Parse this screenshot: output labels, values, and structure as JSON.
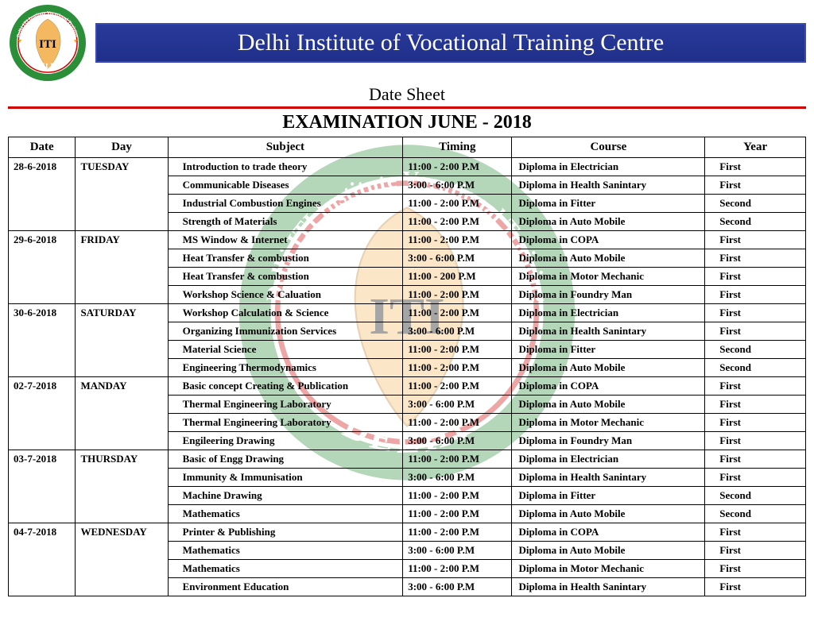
{
  "header": {
    "institute": "Delhi Institute of Vocational Training Centre",
    "subtitle": "Date Sheet",
    "exam_title": "EXAMINATION JUNE - 2018"
  },
  "logo": {
    "ring_outer": "#2b8f3a",
    "ring_text_bg": "#1f6f2a",
    "center_bg": "#ffffff",
    "text": "ITI",
    "city": "DELHI",
    "arc_top": "Delhi ITI Institute Vocational Training",
    "arc_bottom": "Centre",
    "star": "#f5a623",
    "map_fill": "#f4b860"
  },
  "colors": {
    "title_bg": "#24369a",
    "title_text": "#ffffff",
    "red_rule": "#d00000",
    "border": "#000000",
    "text": "#000000"
  },
  "columns": [
    "Date",
    "Day",
    "Subject",
    "Timing",
    "Course",
    "Year"
  ],
  "groups": [
    {
      "date": "28-6-2018",
      "day": "TUESDAY",
      "rows": [
        {
          "subject": "Introduction to trade theory",
          "timing": "11:00 - 2:00 P.M",
          "course": "Diploma in Electrician",
          "year": "First"
        },
        {
          "subject": "Communicable Diseases",
          "timing": "3:00 - 6:00 P.M",
          "course": "Diploma in Health Sanintary",
          "year": "First"
        },
        {
          "subject": "Industrial Combustion Engines",
          "timing": "11:00 - 2:00 P.M",
          "course": "Diploma in Fitter",
          "year": "Second"
        },
        {
          "subject": "Strength of Materials",
          "timing": "11:00 - 2:00 P.M",
          "course": "Diploma in Auto Mobile",
          "year": "Second"
        }
      ]
    },
    {
      "date": "29-6-2018",
      "day": "FRIDAY",
      "rows": [
        {
          "subject": "MS Window & Internet",
          "timing": "11:00 - 2:00 P.M",
          "course": "Diploma in COPA",
          "year": "First"
        },
        {
          "subject": "Heat Transfer & combustion",
          "timing": "3:00 - 6:00 P.M",
          "course": "Diploma in Auto Mobile",
          "year": "First"
        },
        {
          "subject": "Heat Transfer & combustion",
          "timing": "11:00 - 200 P.M",
          "course": "Diploma in Motor Mechanic",
          "year": "First"
        },
        {
          "subject": "Workshop Science & Caluation",
          "timing": "11:00 - 2:00 P.M",
          "course": "Diploma in Foundry Man",
          "year": "First"
        }
      ]
    },
    {
      "date": "30-6-2018",
      "day": "SATURDAY",
      "rows": [
        {
          "subject": "Workshop Calculation & Science",
          "timing": "11:00 - 2:00 P.M",
          "course": "Diploma in Electrician",
          "year": "First"
        },
        {
          "subject": "Organizing Immunization Services",
          "timing": "3:00 - 6:00 P.M",
          "course": "Diploma in Health Sanintary",
          "year": "First"
        },
        {
          "subject": "Material Science",
          "timing": "11:00 - 2:00 P.M",
          "course": "Diploma in Fitter",
          "year": "Second"
        },
        {
          "subject": "Engineering Thermodynamics",
          "timing": "11:00 - 2:00 P.M",
          "course": "Diploma in Auto Mobile",
          "year": "Second"
        }
      ]
    },
    {
      "date": "02-7-2018",
      "day": "MANDAY",
      "rows": [
        {
          "subject": "Basic concept Creating & Publication",
          "timing": "11:00 - 2:00 P.M",
          "course": "Diploma in COPA",
          "year": "First"
        },
        {
          "subject": "Thermal Engineering Laboratory",
          "timing": "3:00 - 6:00 P.M",
          "course": "Diploma in Auto Mobile",
          "year": "First"
        },
        {
          "subject": "Thermal Engineering Laboratory",
          "timing": "11:00 - 2:00 P.M",
          "course": "Diploma in Motor Mechanic",
          "year": "First"
        },
        {
          "subject": "Engileering Drawing",
          "timing": "3:00 - 6:00 P.M",
          "course": "Diploma in Foundry Man",
          "year": "First"
        }
      ]
    },
    {
      "date": "03-7-2018",
      "day": "THURSDAY",
      "rows": [
        {
          "subject": "Basic of Engg Drawing",
          "timing": "11:00 - 2:00 P.M",
          "course": "Diploma in Electrician",
          "year": "First"
        },
        {
          "subject": "Immunity & Immunisation",
          "timing": "3:00 - 6:00 P.M",
          "course": "Diploma in Health Sanintary",
          "year": "First"
        },
        {
          "subject": "Machine Drawing",
          "timing": "11:00 - 2:00 P.M",
          "course": "Diploma in Fitter",
          "year": "Second"
        },
        {
          "subject": "Mathematics",
          "timing": "11:00 - 2:00 P.M",
          "course": "Diploma in Auto Mobile",
          "year": "Second"
        }
      ]
    },
    {
      "date": "04-7-2018",
      "day": "WEDNESDAY",
      "rows": [
        {
          "subject": "Printer & Publishing",
          "timing": "11:00 - 2:00 P.M",
          "course": "Diploma in COPA",
          "year": "First"
        },
        {
          "subject": "Mathematics",
          "timing": "3:00 - 6:00 P.M",
          "course": "Diploma in Auto Mobile",
          "year": "First"
        },
        {
          "subject": "Mathematics",
          "timing": "11:00 - 2:00 P.M",
          "course": "Diploma in Motor Mechanic",
          "year": "First"
        },
        {
          "subject": "Environment Education",
          "timing": "3:00 - 6:00 P.M",
          "course": "Diploma in Health Sanintary",
          "year": "First"
        }
      ]
    }
  ]
}
